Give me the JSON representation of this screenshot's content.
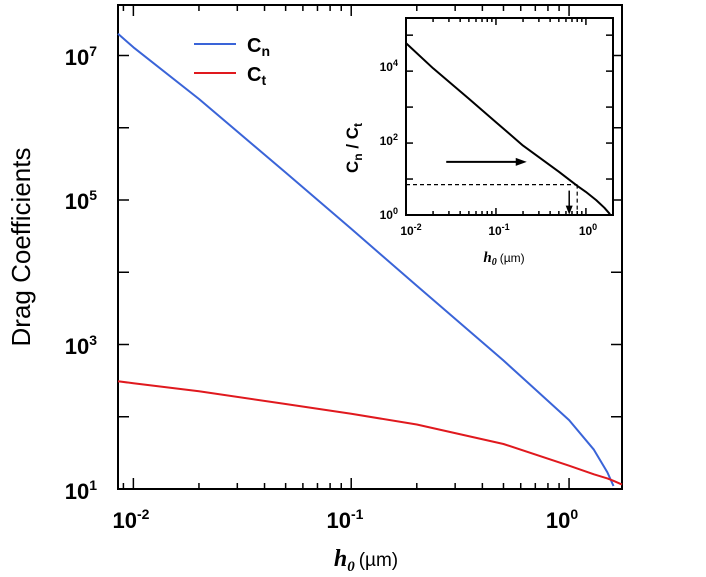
{
  "chart_data": [
    {
      "type": "line",
      "scale": {
        "x": "log",
        "y": "log"
      },
      "xlim": [
        0.0085,
        1.75
      ],
      "ylim": [
        10,
        50000000
      ],
      "ylabel": "Drag Coefficients",
      "xlabel": {
        "var": "h",
        "sub": "0",
        "unit": "(µm)"
      },
      "x_ticks": [
        {
          "base": "10",
          "exp": "-2",
          "value": 0.01
        },
        {
          "base": "10",
          "exp": "-1",
          "value": 0.1
        },
        {
          "base": "10",
          "exp": "0",
          "value": 1
        }
      ],
      "y_ticks": [
        {
          "base": "10",
          "exp": "1",
          "value": 10
        },
        {
          "base": "10",
          "exp": "3",
          "value": 1000
        },
        {
          "base": "10",
          "exp": "5",
          "value": 100000
        },
        {
          "base": "10",
          "exp": "7",
          "value": 10000000
        }
      ],
      "legend": {
        "position": "top-left"
      },
      "series": [
        {
          "name": "Cn",
          "label_main": "C",
          "label_sub": "n",
          "color": "#3a64d8",
          "x": [
            0.0085,
            0.01,
            0.02,
            0.05,
            0.1,
            0.2,
            0.5,
            1.0,
            1.3,
            1.5,
            1.6
          ],
          "y": [
            20000000,
            13000000,
            2500000,
            240000,
            40000,
            6500,
            600,
            90,
            35,
            17,
            11
          ]
        },
        {
          "name": "Ct",
          "label_main": "C",
          "label_sub": "t",
          "color": "#e0191e",
          "x": [
            0.0085,
            0.01,
            0.02,
            0.05,
            0.1,
            0.2,
            0.5,
            1.0,
            1.3,
            1.5,
            1.6,
            1.75
          ],
          "y": [
            310,
            290,
            225,
            150,
            110,
            78,
            42,
            21,
            16,
            14,
            13,
            11.5
          ]
        }
      ]
    },
    {
      "type": "line",
      "scale": {
        "x": "log",
        "y": "log"
      },
      "xlim": [
        0.01,
        2.0
      ],
      "ylim": [
        1,
        300000
      ],
      "ylabel": {
        "num_main": "C",
        "num_sub": "n",
        "sep": " / ",
        "den_main": "C",
        "den_sub": "t"
      },
      "xlabel": {
        "var": "h",
        "sub": "0",
        "unit": "(µm)"
      },
      "x_ticks": [
        {
          "base": "10",
          "exp": "-2",
          "value": 0.01
        },
        {
          "base": "10",
          "exp": "-1",
          "value": 0.1
        },
        {
          "base": "10",
          "exp": "0",
          "value": 1
        }
      ],
      "y_ticks": [
        {
          "base": "10",
          "exp": "0",
          "value": 1
        },
        {
          "base": "10",
          "exp": "2",
          "value": 100
        },
        {
          "base": "10",
          "exp": "4",
          "value": 10000
        }
      ],
      "series": [
        {
          "name": "Cn/Ct",
          "color": "#000000",
          "x": [
            0.01,
            0.02,
            0.05,
            0.1,
            0.2,
            0.5,
            0.8,
            1.0,
            1.3,
            1.6,
            1.85
          ],
          "y": [
            60000,
            12000,
            1700,
            380,
            85,
            16,
            6.5,
            4.4,
            2.6,
            1.6,
            1.05
          ]
        }
      ],
      "annotation": {
        "reference_y": 7,
        "reference_x": 0.8,
        "arrow_right_from_x": 0.028,
        "arrow_right_to_x": 0.22,
        "arrow_right_y": 30
      }
    }
  ]
}
